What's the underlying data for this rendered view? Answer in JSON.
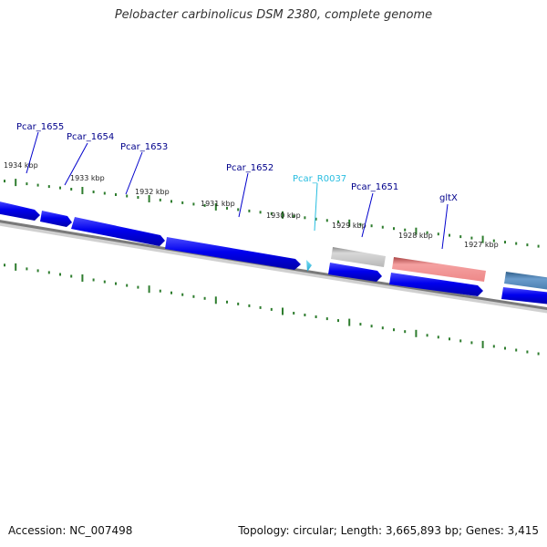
{
  "title": "Pelobacter carbinolicus DSM 2380, complete genome",
  "footer": {
    "accession": "Accession: NC_007498",
    "summary": "Topology: circular; Length: 3,665,893 bp; Genes: 3,415"
  },
  "colors": {
    "cds": "#0000ee",
    "rna": "#33c4e0",
    "label_blue": "#00008b",
    "label_cyan": "#27bde0",
    "tick": "#2e7d2e",
    "backbone": "#7a7a7a",
    "pseudo_gray": "#b5b5b5",
    "gltx_red": "#ee8888",
    "steelblue": "#4a7fb0"
  },
  "scale_ticks": [
    "1934 kbp",
    "1933 kbp",
    "1932 kbp",
    "1931 kbp",
    "1930 kbp",
    "1929 kbp",
    "1928 kbp",
    "1927 kbp"
  ],
  "gene_labels": [
    {
      "name": "Pcar_1655",
      "type": "cds"
    },
    {
      "name": "Pcar_1654",
      "type": "cds"
    },
    {
      "name": "Pcar_1653",
      "type": "cds"
    },
    {
      "name": "Pcar_1652",
      "type": "cds"
    },
    {
      "name": "Pcar_R0037",
      "type": "rna"
    },
    {
      "name": "Pcar_1651",
      "type": "cds"
    },
    {
      "name": "gltX",
      "type": "cds"
    }
  ]
}
